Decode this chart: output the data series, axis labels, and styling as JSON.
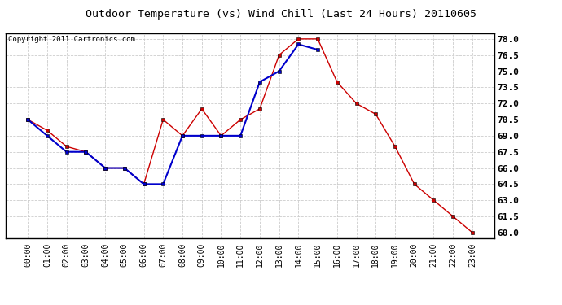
{
  "title": "Outdoor Temperature (vs) Wind Chill (Last 24 Hours) 20110605",
  "copyright_text": "Copyright 2011 Cartronics.com",
  "x_labels": [
    "00:00",
    "01:00",
    "02:00",
    "03:00",
    "04:00",
    "05:00",
    "06:00",
    "07:00",
    "08:00",
    "09:00",
    "10:00",
    "11:00",
    "12:00",
    "13:00",
    "14:00",
    "15:00",
    "16:00",
    "17:00",
    "18:00",
    "19:00",
    "20:00",
    "21:00",
    "22:00",
    "23:00"
  ],
  "temp_data": [
    70.5,
    69.5,
    68.0,
    67.5,
    66.0,
    66.0,
    64.5,
    70.5,
    69.0,
    71.5,
    69.0,
    70.5,
    71.5,
    76.5,
    78.0,
    78.0,
    74.0,
    72.0,
    71.0,
    68.0,
    64.5,
    63.0,
    61.5,
    60.0
  ],
  "wind_chill_data": [
    70.5,
    69.0,
    67.5,
    67.5,
    66.0,
    66.0,
    64.5,
    64.5,
    69.0,
    69.0,
    69.0,
    69.0,
    74.0,
    75.0,
    77.5,
    77.0,
    null,
    null,
    null,
    null,
    null,
    null,
    null,
    null
  ],
  "temp_color": "#cc0000",
  "wind_chill_color": "#0000cc",
  "background_color": "#ffffff",
  "grid_color": "#cccccc",
  "ylim_min": 59.5,
  "ylim_max": 78.5,
  "yticks": [
    60.0,
    61.5,
    63.0,
    64.5,
    66.0,
    67.5,
    69.0,
    70.5,
    72.0,
    73.5,
    75.0,
    76.5,
    78.0
  ],
  "title_fontsize": 9.5,
  "copyright_fontsize": 6.5,
  "tick_fontsize": 7,
  "ytick_fontsize": 8
}
